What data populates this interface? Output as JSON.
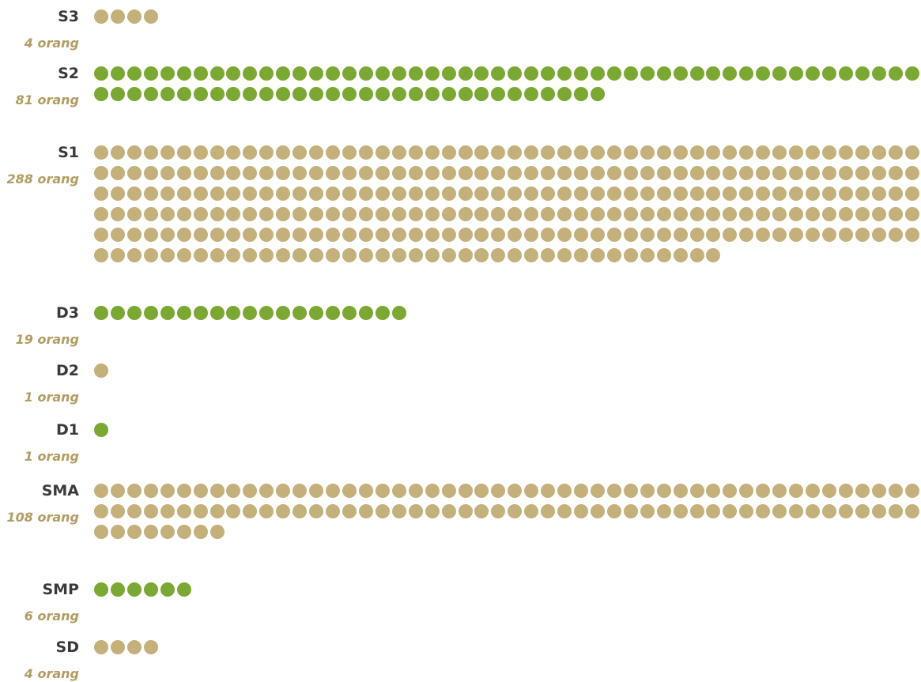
{
  "chart_data": {
    "type": "dot-matrix",
    "unit_label": "orang",
    "colors": {
      "tan": "#c4b07a",
      "green": "#7aa833"
    },
    "rows": [
      {
        "label": "S3",
        "count_text": "4 orang",
        "value": 4,
        "color": "tan"
      },
      {
        "label": "S2",
        "count_text": "81 orang",
        "value": 81,
        "color": "green"
      },
      {
        "label": "S1",
        "count_text": "288 orang",
        "value": 288,
        "color": "tan"
      },
      {
        "label": "D3",
        "count_text": "19 orang",
        "value": 19,
        "color": "green"
      },
      {
        "label": "D2",
        "count_text": "1 orang",
        "value": 1,
        "color": "tan"
      },
      {
        "label": "D1",
        "count_text": "1 orang",
        "value": 1,
        "color": "green"
      },
      {
        "label": "SMA",
        "count_text": "108 orang",
        "value": 108,
        "color": "tan"
      },
      {
        "label": "SMP",
        "count_text": "6 orang",
        "value": 6,
        "color": "green"
      },
      {
        "label": "SD",
        "count_text": "4 orang",
        "value": 4,
        "color": "tan"
      }
    ]
  }
}
